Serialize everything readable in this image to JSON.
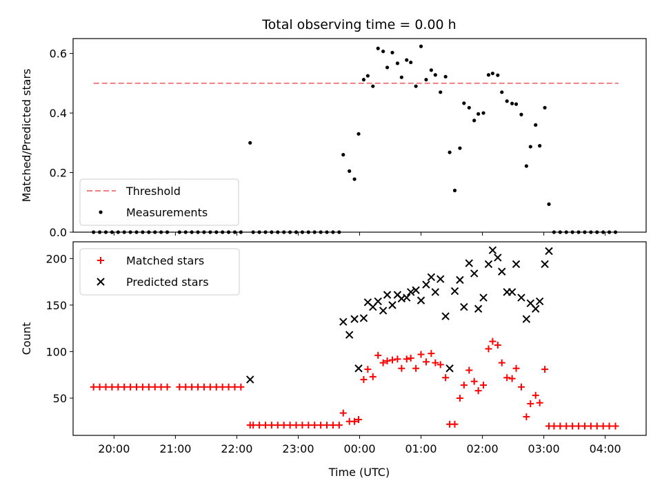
{
  "title": "Total observing time = 0.00 h",
  "xlabel": "Time (UTC)",
  "chart_data": [
    {
      "type": "scatter",
      "ylabel": "Matched/Predicted stars",
      "ylim": [
        0,
        0.65
      ],
      "yticks": [
        "0.0",
        "0.2",
        "0.4",
        "0.6"
      ],
      "yticks_values": [
        0,
        0.2,
        0.4,
        0.6
      ],
      "grid": false,
      "legend": {
        "placement": "lower-left",
        "entries": [
          "Threshold",
          "Measurements"
        ]
      },
      "threshold": {
        "name": "Threshold",
        "value": 0.5,
        "x_range": [
          "19:40",
          "04:13"
        ],
        "color": "#f08080"
      },
      "series": [
        {
          "name": "Measurements",
          "marker": "dot",
          "color": "#000000",
          "points": [
            [
              "19:40",
              0
            ],
            [
              "19:46",
              0
            ],
            [
              "19:52",
              0
            ],
            [
              "19:58",
              0
            ],
            [
              "20:04",
              0
            ],
            [
              "20:10",
              0
            ],
            [
              "20:16",
              0
            ],
            [
              "20:22",
              0
            ],
            [
              "20:28",
              0
            ],
            [
              "20:34",
              0
            ],
            [
              "20:40",
              0
            ],
            [
              "20:46",
              0
            ],
            [
              "20:52",
              0
            ],
            [
              "21:04",
              0
            ],
            [
              "21:10",
              0
            ],
            [
              "21:16",
              0
            ],
            [
              "21:22",
              0
            ],
            [
              "21:28",
              0
            ],
            [
              "21:34",
              0
            ],
            [
              "21:40",
              0
            ],
            [
              "21:46",
              0
            ],
            [
              "21:52",
              0
            ],
            [
              "21:58",
              0
            ],
            [
              "22:04",
              0
            ],
            [
              "22:13",
              0.3
            ],
            [
              "22:16",
              0
            ],
            [
              "22:22",
              0
            ],
            [
              "22:28",
              0
            ],
            [
              "22:34",
              0
            ],
            [
              "22:40",
              0
            ],
            [
              "22:46",
              0
            ],
            [
              "22:52",
              0
            ],
            [
              "22:58",
              0
            ],
            [
              "23:04",
              0
            ],
            [
              "23:10",
              0
            ],
            [
              "23:16",
              0
            ],
            [
              "23:22",
              0
            ],
            [
              "23:28",
              0
            ],
            [
              "23:34",
              0
            ],
            [
              "23:40",
              0
            ],
            [
              "23:44",
              0.26
            ],
            [
              "23:50",
              0.205
            ],
            [
              "23:55",
              0.178
            ],
            [
              "23:59",
              0.33
            ],
            [
              "00:04",
              0.512
            ],
            [
              "00:08",
              0.525
            ],
            [
              "00:13",
              0.49
            ],
            [
              "00:18",
              0.617
            ],
            [
              "00:23",
              0.607
            ],
            [
              "00:27",
              0.553
            ],
            [
              "00:32",
              0.603
            ],
            [
              "00:37",
              0.567
            ],
            [
              "00:41",
              0.52
            ],
            [
              "00:46",
              0.578
            ],
            [
              "00:50",
              0.57
            ],
            [
              "00:55",
              0.49
            ],
            [
              "01:00",
              0.624
            ],
            [
              "01:05",
              0.512
            ],
            [
              "01:10",
              0.544
            ],
            [
              "01:14",
              0.528
            ],
            [
              "01:19",
              0.47
            ],
            [
              "01:24",
              0.522
            ],
            [
              "01:28",
              0.268
            ],
            [
              "01:33",
              0.14
            ],
            [
              "01:38",
              0.282
            ],
            [
              "01:42",
              0.433
            ],
            [
              "01:47",
              0.418
            ],
            [
              "01:52",
              0.375
            ],
            [
              "01:56",
              0.397
            ],
            [
              "02:01",
              0.4
            ],
            [
              "02:06",
              0.528
            ],
            [
              "02:10",
              0.533
            ],
            [
              "02:15",
              0.527
            ],
            [
              "02:19",
              0.47
            ],
            [
              "02:24",
              0.44
            ],
            [
              "02:29",
              0.432
            ],
            [
              "02:33",
              0.43
            ],
            [
              "02:38",
              0.395
            ],
            [
              "02:43",
              0.222
            ],
            [
              "02:47",
              0.287
            ],
            [
              "02:52",
              0.36
            ],
            [
              "02:56",
              0.29
            ],
            [
              "03:01",
              0.418
            ],
            [
              "03:05",
              0.094
            ],
            [
              "03:10",
              0
            ],
            [
              "03:16",
              0
            ],
            [
              "03:22",
              0
            ],
            [
              "03:28",
              0
            ],
            [
              "03:34",
              0
            ],
            [
              "03:40",
              0
            ],
            [
              "03:46",
              0
            ],
            [
              "03:52",
              0
            ],
            [
              "03:58",
              0
            ],
            [
              "04:04",
              0
            ],
            [
              "04:10",
              0
            ]
          ]
        }
      ]
    },
    {
      "type": "scatter",
      "ylabel": "Count",
      "ylim": [
        10,
        218
      ],
      "yticks": [
        "50",
        "100",
        "150",
        "200"
      ],
      "yticks_values": [
        50,
        100,
        150,
        200
      ],
      "grid": false,
      "legend": {
        "placement": "upper-left",
        "entries": [
          "Matched stars",
          "Predicted stars"
        ]
      },
      "series": [
        {
          "name": "Matched stars",
          "marker": "plus",
          "color": "#ff0000",
          "points": [
            [
              "19:40",
              62
            ],
            [
              "19:46",
              62
            ],
            [
              "19:52",
              62
            ],
            [
              "19:58",
              62
            ],
            [
              "20:04",
              62
            ],
            [
              "20:10",
              62
            ],
            [
              "20:16",
              62
            ],
            [
              "20:22",
              62
            ],
            [
              "20:28",
              62
            ],
            [
              "20:34",
              62
            ],
            [
              "20:40",
              62
            ],
            [
              "20:46",
              62
            ],
            [
              "20:52",
              62
            ],
            [
              "21:04",
              62
            ],
            [
              "21:10",
              62
            ],
            [
              "21:16",
              62
            ],
            [
              "21:22",
              62
            ],
            [
              "21:28",
              62
            ],
            [
              "21:34",
              62
            ],
            [
              "21:40",
              62
            ],
            [
              "21:46",
              62
            ],
            [
              "21:52",
              62
            ],
            [
              "21:58",
              62
            ],
            [
              "22:04",
              62
            ],
            [
              "22:13",
              21
            ],
            [
              "22:16",
              21
            ],
            [
              "22:22",
              21
            ],
            [
              "22:28",
              21
            ],
            [
              "22:34",
              21
            ],
            [
              "22:40",
              21
            ],
            [
              "22:46",
              21
            ],
            [
              "22:52",
              21
            ],
            [
              "22:58",
              21
            ],
            [
              "23:04",
              21
            ],
            [
              "23:10",
              21
            ],
            [
              "23:16",
              21
            ],
            [
              "23:22",
              21
            ],
            [
              "23:28",
              21
            ],
            [
              "23:34",
              21
            ],
            [
              "23:40",
              21
            ],
            [
              "23:44",
              34
            ],
            [
              "23:50",
              25
            ],
            [
              "23:55",
              25
            ],
            [
              "23:59",
              27
            ],
            [
              "00:04",
              70
            ],
            [
              "00:08",
              81
            ],
            [
              "00:13",
              73
            ],
            [
              "00:18",
              96
            ],
            [
              "00:23",
              88
            ],
            [
              "00:27",
              90
            ],
            [
              "00:32",
              91
            ],
            [
              "00:37",
              92
            ],
            [
              "00:41",
              82
            ],
            [
              "00:46",
              92
            ],
            [
              "00:50",
              93
            ],
            [
              "00:55",
              82
            ],
            [
              "01:00",
              97
            ],
            [
              "01:05",
              89
            ],
            [
              "01:10",
              98
            ],
            [
              "01:14",
              88
            ],
            [
              "01:19",
              86
            ],
            [
              "01:24",
              72
            ],
            [
              "01:28",
              22
            ],
            [
              "01:33",
              22
            ],
            [
              "01:38",
              50
            ],
            [
              "01:42",
              64
            ],
            [
              "01:47",
              80
            ],
            [
              "01:52",
              68
            ],
            [
              "01:56",
              58
            ],
            [
              "02:01",
              64
            ],
            [
              "02:06",
              103
            ],
            [
              "02:10",
              111
            ],
            [
              "02:15",
              107
            ],
            [
              "02:19",
              88
            ],
            [
              "02:24",
              72
            ],
            [
              "02:29",
              71
            ],
            [
              "02:33",
              82
            ],
            [
              "02:38",
              62
            ],
            [
              "02:43",
              30
            ],
            [
              "02:47",
              44
            ],
            [
              "02:52",
              53
            ],
            [
              "02:56",
              45
            ],
            [
              "03:01",
              81
            ],
            [
              "03:05",
              20
            ],
            [
              "03:10",
              20
            ],
            [
              "03:16",
              20
            ],
            [
              "03:22",
              20
            ],
            [
              "03:28",
              20
            ],
            [
              "03:34",
              20
            ],
            [
              "03:40",
              20
            ],
            [
              "03:46",
              20
            ],
            [
              "03:52",
              20
            ],
            [
              "03:58",
              20
            ],
            [
              "04:04",
              20
            ],
            [
              "04:10",
              20
            ]
          ]
        },
        {
          "name": "Predicted stars",
          "marker": "x",
          "color": "#000000",
          "points": [
            [
              "22:13",
              70
            ],
            [
              "23:44",
              132
            ],
            [
              "23:50",
              118
            ],
            [
              "23:55",
              135
            ],
            [
              "23:59",
              82
            ],
            [
              "00:04",
              136
            ],
            [
              "00:08",
              153
            ],
            [
              "00:13",
              148
            ],
            [
              "00:18",
              154
            ],
            [
              "00:23",
              144
            ],
            [
              "00:27",
              161
            ],
            [
              "00:32",
              150
            ],
            [
              "00:37",
              161
            ],
            [
              "00:41",
              157
            ],
            [
              "00:46",
              158
            ],
            [
              "00:50",
              164
            ],
            [
              "00:55",
              166
            ],
            [
              "01:00",
              155
            ],
            [
              "01:05",
              172
            ],
            [
              "01:10",
              180
            ],
            [
              "01:14",
              164
            ],
            [
              "01:19",
              178
            ],
            [
              "01:24",
              138
            ],
            [
              "01:28",
              82
            ],
            [
              "01:33",
              165
            ],
            [
              "01:38",
              177
            ],
            [
              "01:42",
              148
            ],
            [
              "01:47",
              195
            ],
            [
              "01:52",
              184
            ],
            [
              "01:56",
              146
            ],
            [
              "02:01",
              158
            ],
            [
              "02:06",
              194
            ],
            [
              "02:10",
              209
            ],
            [
              "02:15",
              201
            ],
            [
              "02:19",
              186
            ],
            [
              "02:24",
              164
            ],
            [
              "02:29",
              164
            ],
            [
              "02:33",
              194
            ],
            [
              "02:38",
              158
            ],
            [
              "02:43",
              135
            ],
            [
              "02:47",
              152
            ],
            [
              "02:52",
              146
            ],
            [
              "02:56",
              154
            ],
            [
              "03:01",
              194
            ],
            [
              "03:05",
              208
            ]
          ]
        }
      ]
    }
  ],
  "xaxis": {
    "ticks": [
      "20:00",
      "21:00",
      "22:00",
      "23:00",
      "00:00",
      "01:00",
      "02:00",
      "03:00",
      "04:00"
    ],
    "xlim": [
      "19:20",
      "04:40"
    ]
  }
}
